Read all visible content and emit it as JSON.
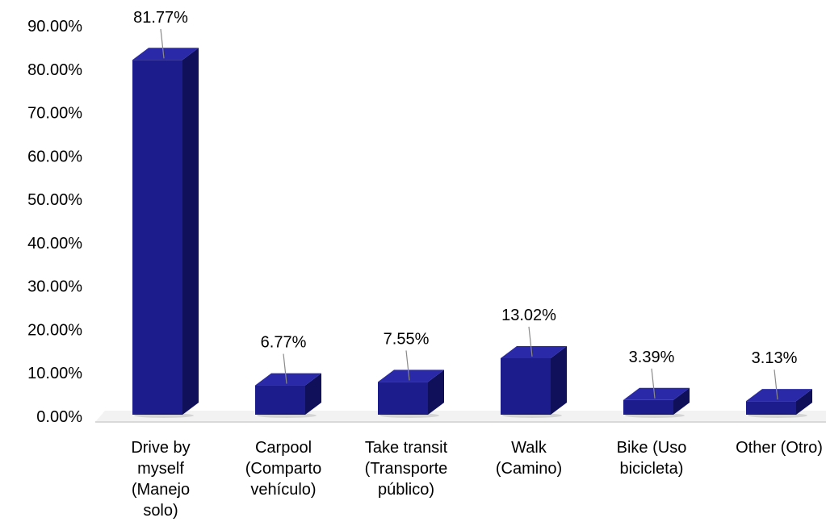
{
  "chart_data": {
    "type": "bar",
    "title": "",
    "xlabel": "",
    "ylabel": "",
    "categories": [
      [
        "Drive by",
        "myself",
        "(Manejo",
        "solo)"
      ],
      [
        "Carpool",
        "(Comparto",
        "vehículo)"
      ],
      [
        "Take transit",
        "(Transporte",
        "público)"
      ],
      [
        "Walk",
        "(Camino)"
      ],
      [
        "Bike (Uso",
        "bicicleta)"
      ],
      [
        "Other (Otro)"
      ]
    ],
    "values": [
      81.77,
      6.77,
      7.55,
      13.02,
      3.39,
      3.13
    ],
    "data_labels": [
      "81.77%",
      "6.77%",
      "7.55%",
      "13.02%",
      "3.39%",
      "3.13%"
    ],
    "ylim": [
      0,
      90
    ],
    "yticks": [
      0,
      10,
      20,
      30,
      40,
      50,
      60,
      70,
      80,
      90
    ],
    "ytick_labels": [
      "0.00%",
      "10.00%",
      "20.00%",
      "30.00%",
      "40.00%",
      "50.00%",
      "60.00%",
      "70.00%",
      "80.00%",
      "90.00%"
    ],
    "grid": false,
    "style": "3d-column",
    "colors": {
      "bar_front": "#1c1c8c",
      "bar_top": "#2a2aa8",
      "bar_side": "#10105a",
      "leader_line": "#8a8a8a",
      "floor": "#d9d9d9"
    }
  }
}
